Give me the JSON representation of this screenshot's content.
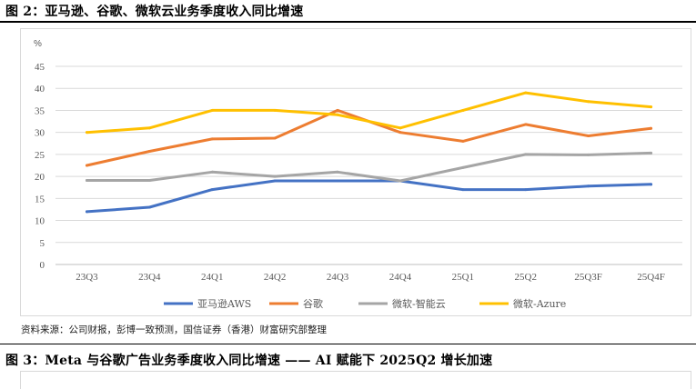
{
  "figure": {
    "title": "图 2：亚马逊、谷歌、微软云业务季度收入同比增速",
    "source": "资料来源：公司财报，彭博一致预测，国信证券（香港）财富研究部整理"
  },
  "next_figure": {
    "title": "图 3：Meta 与谷歌广告业务季度收入同比增速 —— AI 赋能下 2025Q2 增长加速"
  },
  "chart_data": {
    "type": "line",
    "ylabel": "%",
    "ylim": [
      0,
      45
    ],
    "yticks": [
      0,
      5,
      10,
      15,
      20,
      25,
      30,
      35,
      40,
      45
    ],
    "grid": true,
    "legend_position": "bottom",
    "categories": [
      "23Q3",
      "23Q4",
      "24Q1",
      "24Q2",
      "24Q3",
      "24Q4",
      "25Q1",
      "25Q2",
      "25Q3F",
      "25Q4F"
    ],
    "series": [
      {
        "name": "亚马逊AWS",
        "color": "#4472c4",
        "values": [
          12,
          13,
          17,
          19,
          19,
          19,
          17,
          17,
          17.8,
          18.2
        ]
      },
      {
        "name": "谷歌",
        "color": "#ed7d31",
        "values": [
          22.5,
          25.7,
          28.5,
          28.7,
          35,
          30,
          28,
          31.8,
          29.2,
          30.9
        ]
      },
      {
        "name": "微软-智能云",
        "color": "#a5a5a5",
        "values": [
          19.1,
          19.1,
          21,
          20,
          21,
          19,
          22,
          25,
          24.9,
          25.3
        ]
      },
      {
        "name": "微软-Azure",
        "color": "#ffc000",
        "values": [
          30,
          31,
          35,
          35,
          34,
          31,
          35,
          39,
          37,
          35.8
        ]
      }
    ]
  }
}
